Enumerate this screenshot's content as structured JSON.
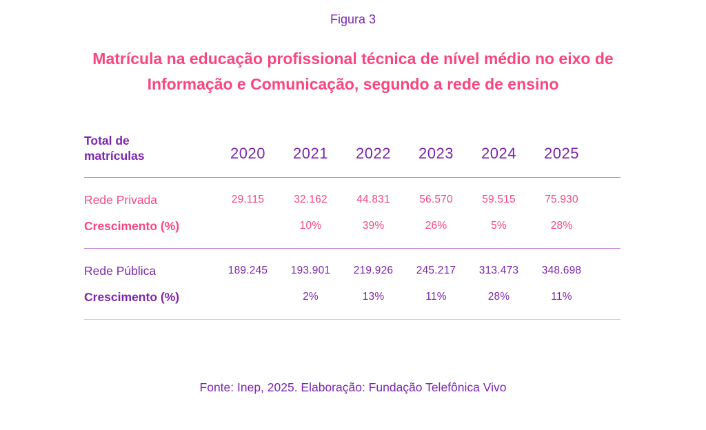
{
  "figure_label": "Figura 3",
  "title": {
    "line1": "Matrícula na educação profissional técnica de nível médio no eixo de",
    "line2": "Informação e Comunicação, segundo a rede de ensino"
  },
  "table": {
    "header_label": "Total de\nmatrículas",
    "years": [
      "2020",
      "2021",
      "2022",
      "2023",
      "2024",
      "2025"
    ],
    "groups": [
      {
        "name": "Rede Privada",
        "values": [
          "29.115",
          "32.162",
          "44.831",
          "56.570",
          "59.515",
          "75.930"
        ],
        "growth_label": "Crescimento (%)",
        "growth": [
          "",
          "10%",
          "39%",
          "26%",
          "5%",
          "28%"
        ]
      },
      {
        "name": "Rede Pública",
        "values": [
          "189.245",
          "193.901",
          "219.926",
          "245.217",
          "313.473",
          "348.698"
        ],
        "growth_label": "Crescimento (%)",
        "growth": [
          "",
          "2%",
          "13%",
          "11%",
          "28%",
          "11%"
        ]
      }
    ]
  },
  "source": "Fonte: Inep, 2025. Elaboração: Fundação Telefônica Vivo",
  "colors": {
    "pink": "#f8467f",
    "purple": "#7d26ae",
    "divider": "#c488d8",
    "divider_light": "#d9c2e8",
    "background": "#ffffff"
  },
  "chart_data": {
    "type": "table",
    "figure_label": "Figura 3",
    "title": "Matrícula na educação profissional técnica de nível médio no eixo de Informação e Comunicação, segundo a rede de ensino",
    "row_header": "Total de matrículas",
    "categories": [
      2020,
      2021,
      2022,
      2023,
      2024,
      2025
    ],
    "series": [
      {
        "name": "Rede Privada",
        "values": [
          29115,
          32162,
          44831,
          56570,
          59515,
          75930
        ]
      },
      {
        "name": "Rede Privada - Crescimento (%)",
        "values": [
          null,
          10,
          39,
          26,
          5,
          28
        ]
      },
      {
        "name": "Rede Pública",
        "values": [
          189245,
          193901,
          219926,
          245217,
          313473,
          348698
        ]
      },
      {
        "name": "Rede Pública - Crescimento (%)",
        "values": [
          null,
          2,
          13,
          11,
          28,
          11
        ]
      }
    ],
    "source": "Fonte: Inep, 2025. Elaboração: Fundação Telefônica Vivo"
  }
}
